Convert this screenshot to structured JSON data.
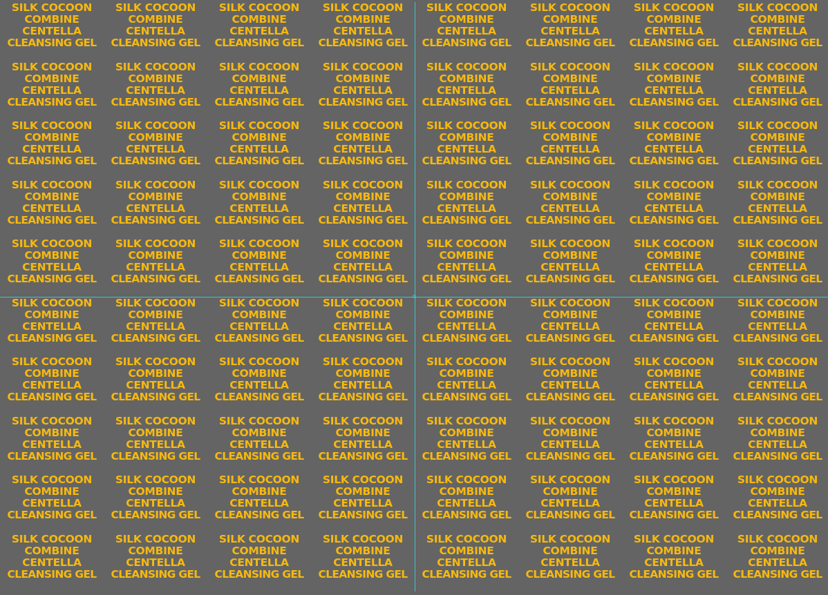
{
  "label": {
    "line1": "SILK COCOON",
    "line2": "COMBINE",
    "line3": "CENTELLA",
    "line4": "CLEANSING GEL"
  },
  "grid": {
    "columns": 8,
    "rows": 10
  },
  "colors": {
    "background": "#646464",
    "text": "#f7b90f",
    "guides": "#37c7cf"
  }
}
